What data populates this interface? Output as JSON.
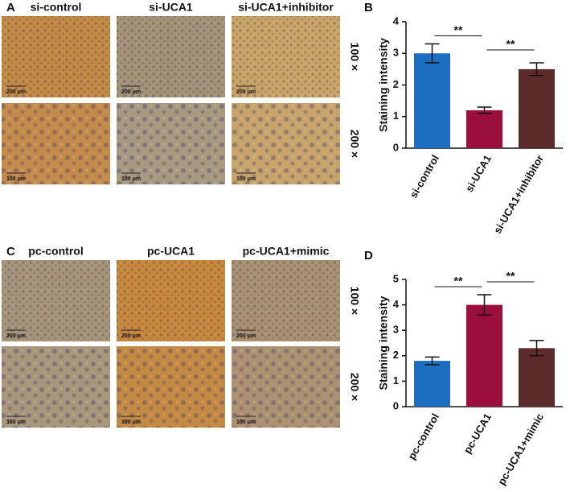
{
  "figure": {
    "panel_labels": [
      "A",
      "B",
      "C",
      "D"
    ],
    "image_panels": [
      {
        "columns": [
          "si-control",
          "si-UCA1",
          "si-UCA1+inhibitor"
        ],
        "magnifications": [
          "100 ×",
          "200 ×"
        ],
        "scale_bars": [
          "200 μm",
          "100 μm"
        ]
      },
      {
        "columns": [
          "pc-control",
          "pc-UCA1",
          "pc-UCA1+mimic"
        ],
        "magnifications": [
          "100 ×",
          "200 ×"
        ],
        "scale_bars": [
          "200 μm",
          "100 μm"
        ]
      }
    ]
  },
  "chart_data": [
    {
      "type": "bar",
      "y_label": "Staining intensity",
      "categories": [
        "si-control",
        "si-UCA1",
        "si-UCA1+inhibitor"
      ],
      "values": [
        3.0,
        1.2,
        2.5
      ],
      "errors": [
        0.3,
        0.1,
        0.2
      ],
      "colors": [
        "#1b6ec2",
        "#9a0f3c",
        "#5e2b2b"
      ],
      "ylim": [
        0,
        4
      ],
      "yticks": [
        0,
        1,
        2,
        3,
        4
      ],
      "significance": [
        "**",
        "**"
      ]
    },
    {
      "type": "bar",
      "y_label": "Staining intensity",
      "categories": [
        "pc-control",
        "pc-UCA1",
        "pc-UCA1+mimic"
      ],
      "values": [
        1.8,
        4.0,
        2.3
      ],
      "errors": [
        0.15,
        0.4,
        0.3
      ],
      "colors": [
        "#1b6ec2",
        "#9a0f3c",
        "#5e2b2b"
      ],
      "ylim": [
        0,
        5
      ],
      "yticks": [
        0,
        1,
        2,
        3,
        4,
        5
      ],
      "significance": [
        "**",
        "**"
      ]
    }
  ]
}
